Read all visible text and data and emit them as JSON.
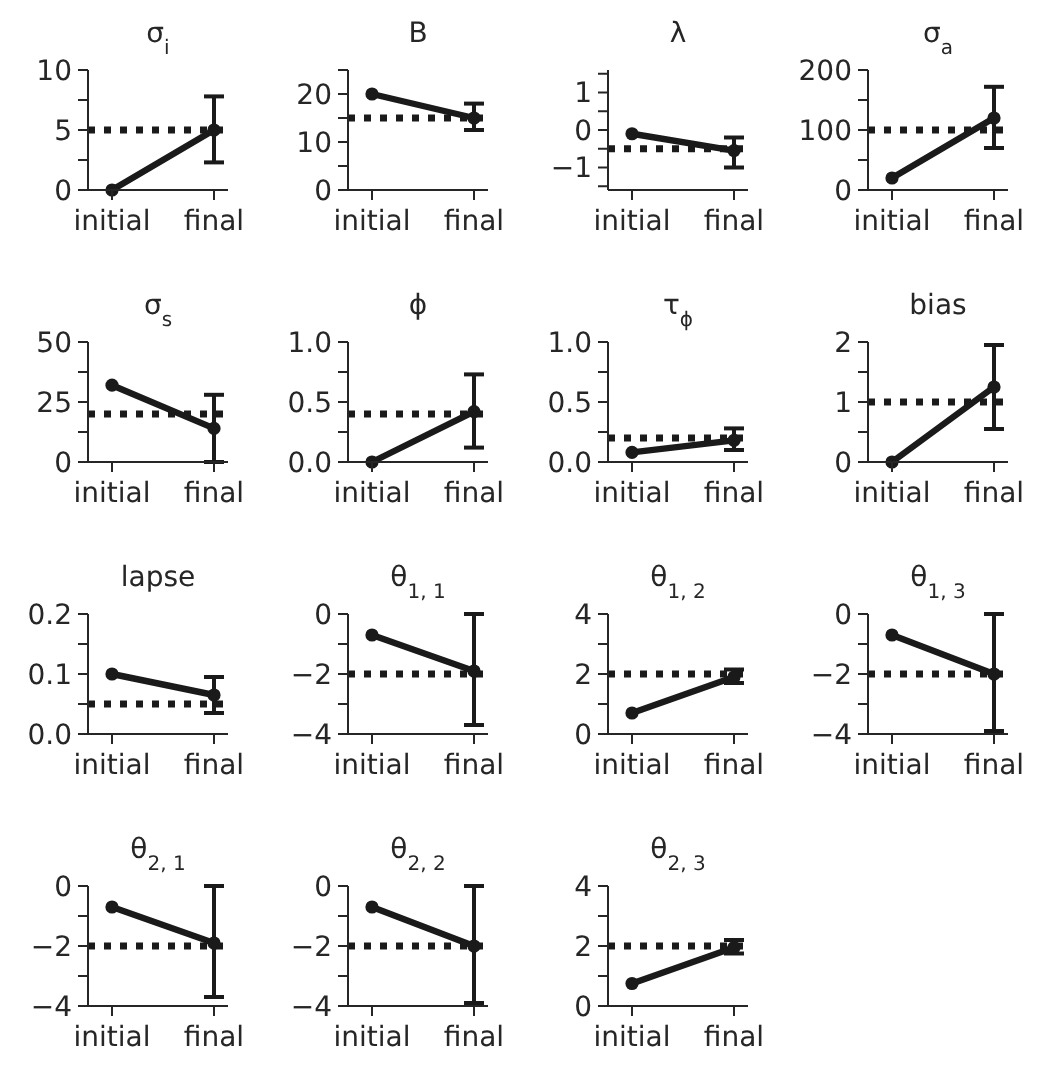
{
  "chart_data": [
    {
      "type": "line",
      "title": "σ$_{i}$",
      "categories": [
        "initial",
        "final"
      ],
      "values": [
        0,
        5
      ],
      "errors": [
        null,
        [
          2.3,
          7.8
        ]
      ],
      "color": "#1a1a1a",
      "marker": "circle",
      "ylim": [
        0,
        10
      ],
      "yticks": [
        0,
        {
          "value": 2.5,
          "label": null
        },
        5,
        {
          "value": 7.5,
          "label": null
        },
        10
      ],
      "ref_lines": [
        {
          "axis": "y",
          "value": 5,
          "line_style": "dotted"
        }
      ]
    },
    {
      "type": "line",
      "title": "B",
      "categories": [
        "initial",
        "final"
      ],
      "values": [
        20,
        15
      ],
      "errors": [
        null,
        [
          12.5,
          18
        ]
      ],
      "color": "#1a1a1a",
      "marker": "circle",
      "ylim": [
        0,
        25
      ],
      "yticks": [
        0,
        {
          "value": 5,
          "label": null
        },
        10,
        {
          "value": 15,
          "label": null
        },
        20,
        {
          "value": 25,
          "label": null
        }
      ],
      "ref_lines": [
        {
          "axis": "y",
          "value": 15,
          "line_style": "dotted"
        }
      ]
    },
    {
      "type": "line",
      "title": "λ",
      "categories": [
        "initial",
        "final"
      ],
      "values": [
        -0.1,
        -0.55
      ],
      "errors": [
        null,
        [
          -1,
          -0.2
        ]
      ],
      "color": "#1a1a1a",
      "marker": "circle",
      "ylim": [
        -1.6,
        1.6
      ],
      "yticks": [
        {
          "value": -1.5,
          "label": null
        },
        {
          "value": -1,
          "label": "−1"
        },
        {
          "value": -0.5,
          "label": null
        },
        0,
        {
          "value": 0.5,
          "label": null
        },
        1,
        {
          "value": 1.5,
          "label": null
        }
      ],
      "ref_lines": [
        {
          "axis": "y",
          "value": -0.5,
          "line_style": "dotted"
        }
      ]
    },
    {
      "type": "line",
      "title": "σ$_{a}$",
      "categories": [
        "initial",
        "final"
      ],
      "values": [
        20,
        120
      ],
      "errors": [
        null,
        [
          70,
          172
        ]
      ],
      "color": "#1a1a1a",
      "marker": "circle",
      "ylim": [
        0,
        200
      ],
      "yticks": [
        0,
        {
          "value": 50,
          "label": null
        },
        100,
        {
          "value": 150,
          "label": null
        },
        200
      ],
      "ref_lines": [
        {
          "axis": "y",
          "value": 100,
          "line_style": "dotted"
        }
      ]
    },
    {
      "type": "line",
      "title": "σ$_{s}$",
      "categories": [
        "initial",
        "final"
      ],
      "values": [
        32,
        14
      ],
      "errors": [
        null,
        [
          0,
          28
        ]
      ],
      "color": "#1a1a1a",
      "marker": "circle",
      "ylim": [
        0,
        50
      ],
      "yticks": [
        0,
        {
          "value": 12.5,
          "label": null
        },
        25,
        {
          "value": 37.5,
          "label": null
        },
        50
      ],
      "ref_lines": [
        {
          "axis": "y",
          "value": 20,
          "line_style": "dotted"
        }
      ]
    },
    {
      "type": "line",
      "title": "ϕ",
      "categories": [
        "initial",
        "final"
      ],
      "values": [
        0,
        0.42
      ],
      "errors": [
        null,
        [
          0.12,
          0.73
        ]
      ],
      "color": "#1a1a1a",
      "marker": "circle",
      "ylim": [
        0,
        1
      ],
      "yticks": [
        {
          "value": 0,
          "label": "0.0"
        },
        {
          "value": 0.25,
          "label": null
        },
        0.5,
        {
          "value": 0.75,
          "label": null
        },
        {
          "value": 1,
          "label": "1.0"
        }
      ],
      "ref_lines": [
        {
          "axis": "y",
          "value": 0.4,
          "line_style": "dotted"
        }
      ]
    },
    {
      "type": "line",
      "title": "τ$_{ϕ}$",
      "categories": [
        "initial",
        "final"
      ],
      "values": [
        0.08,
        0.18
      ],
      "errors": [
        null,
        [
          0.1,
          0.28
        ]
      ],
      "color": "#1a1a1a",
      "marker": "circle",
      "ylim": [
        0,
        1
      ],
      "yticks": [
        {
          "value": 0,
          "label": "0.0"
        },
        {
          "value": 0.25,
          "label": null
        },
        0.5,
        {
          "value": 0.75,
          "label": null
        },
        {
          "value": 1,
          "label": "1.0"
        }
      ],
      "ref_lines": [
        {
          "axis": "y",
          "value": 0.2,
          "line_style": "dotted"
        }
      ]
    },
    {
      "type": "line",
      "title": "bias",
      "categories": [
        "initial",
        "final"
      ],
      "values": [
        0,
        1.25
      ],
      "errors": [
        null,
        [
          0.55,
          1.95
        ]
      ],
      "color": "#1a1a1a",
      "marker": "circle",
      "ylim": [
        0,
        2
      ],
      "yticks": [
        0,
        {
          "value": 0.5,
          "label": null
        },
        1,
        {
          "value": 1.5,
          "label": null
        },
        2
      ],
      "ref_lines": [
        {
          "axis": "y",
          "value": 1,
          "line_style": "dotted"
        }
      ]
    },
    {
      "type": "line",
      "title": "lapse",
      "categories": [
        "initial",
        "final"
      ],
      "values": [
        0.1,
        0.065
      ],
      "errors": [
        null,
        [
          0.035,
          0.095
        ]
      ],
      "color": "#1a1a1a",
      "marker": "circle",
      "ylim": [
        0,
        0.2
      ],
      "yticks": [
        {
          "value": 0,
          "label": "0.0"
        },
        {
          "value": 0.05,
          "label": null
        },
        0.1,
        {
          "value": 0.15,
          "label": null
        },
        0.2
      ],
      "ref_lines": [
        {
          "axis": "y",
          "value": 0.05,
          "line_style": "dotted"
        }
      ]
    },
    {
      "type": "line",
      "title": "θ$_{1, 1}$",
      "categories": [
        "initial",
        "final"
      ],
      "values": [
        -0.7,
        -1.9
      ],
      "errors": [
        null,
        [
          -3.7,
          0
        ]
      ],
      "color": "#1a1a1a",
      "marker": "circle",
      "ylim": [
        -4,
        0
      ],
      "yticks": [
        {
          "value": -4,
          "label": "−4"
        },
        {
          "value": -3,
          "label": null
        },
        {
          "value": -2,
          "label": "−2"
        },
        {
          "value": -1,
          "label": null
        },
        0
      ],
      "ref_lines": [
        {
          "axis": "y",
          "value": -2,
          "line_style": "dotted"
        }
      ]
    },
    {
      "type": "line",
      "title": "θ$_{1, 2}$",
      "categories": [
        "initial",
        "final"
      ],
      "values": [
        0.7,
        1.9
      ],
      "errors": [
        null,
        [
          1.7,
          2.15
        ]
      ],
      "color": "#1a1a1a",
      "marker": "circle",
      "ylim": [
        0,
        4
      ],
      "yticks": [
        0,
        {
          "value": 1,
          "label": null
        },
        2,
        {
          "value": 3,
          "label": null
        },
        4
      ],
      "ref_lines": [
        {
          "axis": "y",
          "value": 2,
          "line_style": "dotted"
        }
      ]
    },
    {
      "type": "line",
      "title": "θ$_{1, 3}$",
      "categories": [
        "initial",
        "final"
      ],
      "values": [
        -0.7,
        -2
      ],
      "errors": [
        null,
        [
          -3.9,
          0
        ]
      ],
      "color": "#1a1a1a",
      "marker": "circle",
      "ylim": [
        -4,
        0
      ],
      "yticks": [
        {
          "value": -4,
          "label": "−4"
        },
        {
          "value": -3,
          "label": null
        },
        {
          "value": -2,
          "label": "−2"
        },
        {
          "value": -1,
          "label": null
        },
        0
      ],
      "ref_lines": [
        {
          "axis": "y",
          "value": -2,
          "line_style": "dotted"
        }
      ]
    },
    {
      "type": "line",
      "title": "θ$_{2, 1}$",
      "categories": [
        "initial",
        "final"
      ],
      "values": [
        -0.7,
        -1.9
      ],
      "errors": [
        null,
        [
          -3.7,
          0
        ]
      ],
      "color": "#1a1a1a",
      "marker": "circle",
      "ylim": [
        -4,
        0
      ],
      "yticks": [
        {
          "value": -4,
          "label": "−4"
        },
        {
          "value": -3,
          "label": null
        },
        {
          "value": -2,
          "label": "−2"
        },
        {
          "value": -1,
          "label": null
        },
        0
      ],
      "ref_lines": [
        {
          "axis": "y",
          "value": -2,
          "line_style": "dotted"
        }
      ]
    },
    {
      "type": "line",
      "title": "θ$_{2, 2}$",
      "categories": [
        "initial",
        "final"
      ],
      "values": [
        -0.7,
        -2
      ],
      "errors": [
        null,
        [
          -3.9,
          0
        ]
      ],
      "color": "#1a1a1a",
      "marker": "circle",
      "ylim": [
        -4,
        0
      ],
      "yticks": [
        {
          "value": -4,
          "label": "−4"
        },
        {
          "value": -3,
          "label": null
        },
        {
          "value": -2,
          "label": "−2"
        },
        {
          "value": -1,
          "label": null
        },
        0
      ],
      "ref_lines": [
        {
          "axis": "y",
          "value": -2,
          "line_style": "dotted"
        }
      ]
    },
    {
      "type": "line",
      "title": "θ$_{2, 3}$",
      "categories": [
        "initial",
        "final"
      ],
      "values": [
        0.75,
        1.95
      ],
      "errors": [
        null,
        [
          1.75,
          2.2
        ]
      ],
      "color": "#1a1a1a",
      "marker": "circle",
      "ylim": [
        0,
        4
      ],
      "yticks": [
        0,
        {
          "value": 1,
          "label": null
        },
        2,
        {
          "value": 3,
          "label": null
        },
        4
      ],
      "ref_lines": [
        {
          "axis": "y",
          "value": 2,
          "line_style": "dotted"
        }
      ]
    }
  ]
}
